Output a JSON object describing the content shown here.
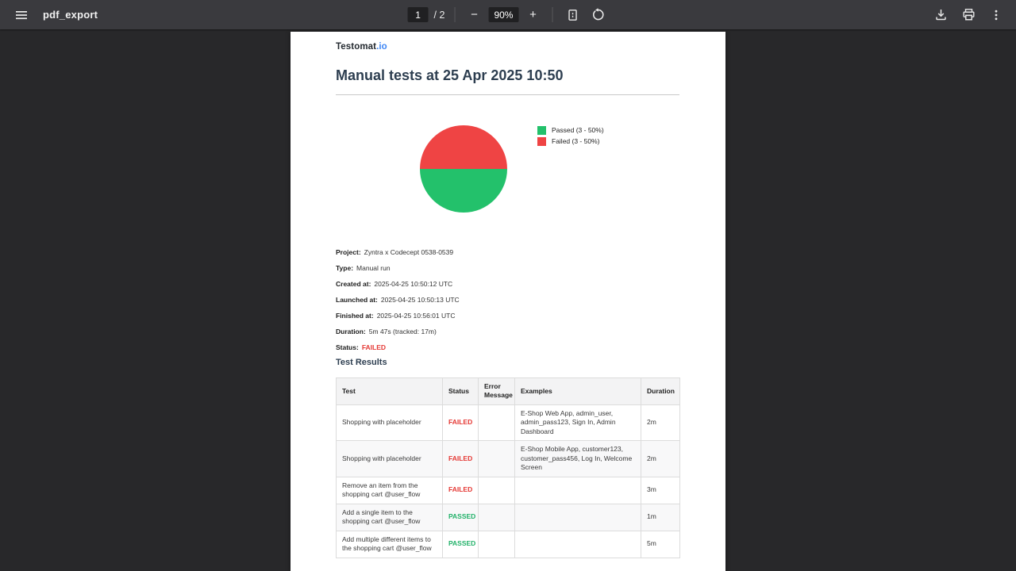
{
  "toolbar": {
    "title": "pdf_export",
    "page_input": "1",
    "page_count_label": "/ 2",
    "zoom_out_label": "−",
    "zoom_value": "90%",
    "zoom_in_label": "+",
    "icons": {
      "menu": "hamburger-menu",
      "fit_page": "fit-to-page",
      "rotate": "rotate-counterclockwise",
      "download": "download",
      "print": "print",
      "more": "more-vertical"
    }
  },
  "document": {
    "logo_primary": "Testomat",
    "logo_accent": ".io",
    "title": "Manual tests at 25 Apr 2025 10:50",
    "details": [
      {
        "label": "Project:",
        "value": "Zyntra x Codecept 0538-0539"
      },
      {
        "label": "Type:",
        "value": "Manual run"
      },
      {
        "label": "Created at:",
        "value": "2025-04-25 10:50:12 UTC"
      },
      {
        "label": "Launched at:",
        "value": "2025-04-25 10:50:13 UTC"
      },
      {
        "label": "Finished at:",
        "value": "2025-04-25 10:56:01 UTC"
      },
      {
        "label": "Duration:",
        "value": "5m 47s (tracked: 17m)"
      },
      {
        "label": "Status:",
        "value": "FAILED",
        "status": "FAILED"
      }
    ],
    "section_title": "Test Results",
    "status_colors": {
      "FAILED": "#e53935",
      "PASSED": "#23b26a"
    },
    "table": {
      "headers": [
        "Test",
        "Status",
        "Error Message",
        "Examples",
        "Duration"
      ],
      "rows": [
        {
          "test": "Shopping with placeholder",
          "status": "FAILED",
          "error": "",
          "examples": "E-Shop Web App, admin_user, admin_pass123, Sign In, Admin Dashboard",
          "duration": "2m"
        },
        {
          "test": "Shopping with placeholder",
          "status": "FAILED",
          "error": "",
          "examples": "E-Shop Mobile App, customer123, customer_pass456, Log In, Welcome Screen",
          "duration": "2m"
        },
        {
          "test": "Remove an item from the shopping cart @user_flow",
          "status": "FAILED",
          "error": "",
          "examples": "",
          "duration": "3m"
        },
        {
          "test": "Add a single item to the shopping cart @user_flow",
          "status": "PASSED",
          "error": "",
          "examples": "",
          "duration": "1m"
        },
        {
          "test": "Add multiple different items to the shopping cart @user_flow",
          "status": "PASSED",
          "error": "",
          "examples": "",
          "duration": "5m"
        }
      ]
    }
  },
  "chart_data": {
    "type": "pie",
    "title": "",
    "slices": [
      {
        "label": "Passed (3 - 50%)",
        "value": 3,
        "percent": 50,
        "color": "#23c16b"
      },
      {
        "label": "Failed (3 - 50%)",
        "value": 3,
        "percent": 50,
        "color": "#ef4444"
      }
    ],
    "legend_position": "right",
    "orientation": "failed-slice-top-half, passed-slice-bottom-half"
  }
}
